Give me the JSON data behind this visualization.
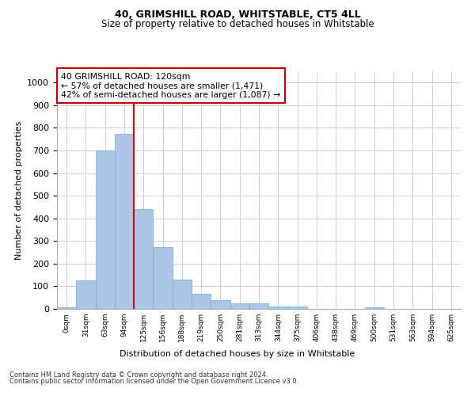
{
  "title1": "40, GRIMSHILL ROAD, WHITSTABLE, CT5 4LL",
  "title2": "Size of property relative to detached houses in Whitstable",
  "xlabel": "Distribution of detached houses by size in Whitstable",
  "ylabel": "Number of detached properties",
  "bar_labels": [
    "0sqm",
    "31sqm",
    "63sqm",
    "94sqm",
    "125sqm",
    "156sqm",
    "188sqm",
    "219sqm",
    "250sqm",
    "281sqm",
    "313sqm",
    "344sqm",
    "375sqm",
    "406sqm",
    "438sqm",
    "469sqm",
    "500sqm",
    "531sqm",
    "563sqm",
    "594sqm",
    "625sqm"
  ],
  "bar_values": [
    8,
    126,
    700,
    775,
    440,
    272,
    130,
    68,
    40,
    23,
    23,
    11,
    11,
    0,
    0,
    0,
    8,
    0,
    0,
    0,
    0
  ],
  "bar_color": "#adc6e8",
  "bar_edgecolor": "#6aaad4",
  "ylim": [
    0,
    1050
  ],
  "yticks": [
    0,
    100,
    200,
    300,
    400,
    500,
    600,
    700,
    800,
    900,
    1000
  ],
  "vline_x": 4,
  "vline_color": "#cc0000",
  "annotation_line1": "40 GRIMSHILL ROAD: 120sqm",
  "annotation_line2": "← 57% of detached houses are smaller (1,471)",
  "annotation_line3": "42% of semi-detached houses are larger (1,087) →",
  "annotation_box_color": "#ffffff",
  "annotation_box_edgecolor": "#cc0000",
  "footer1": "Contains HM Land Registry data © Crown copyright and database right 2024.",
  "footer2": "Contains public sector information licensed under the Open Government Licence v3.0.",
  "grid_color": "#d0d0d0",
  "bg_color": "#ffffff"
}
